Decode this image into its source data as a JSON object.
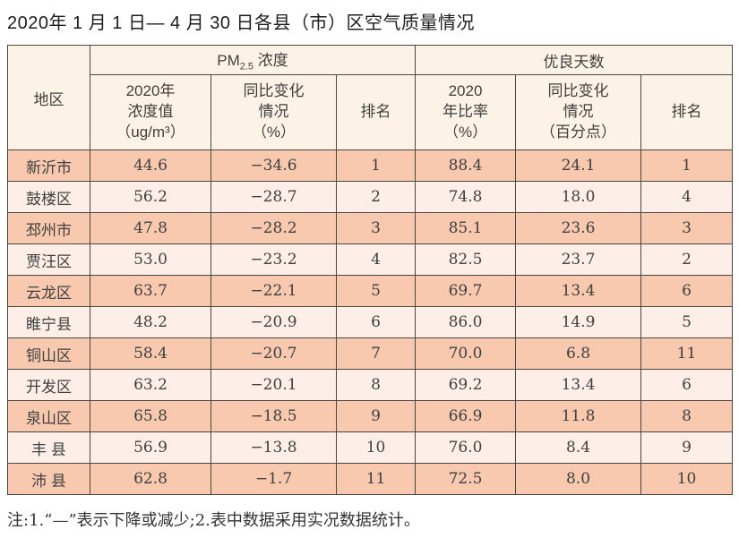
{
  "title": "2020年 1 月 1 日— 4 月 30 日各县（市）区空气质量情况",
  "note": "注:1.“—”表示下降或减少;2.表中数据采用实况数据统计。",
  "colors": {
    "border": "#4a4742",
    "row_peach": "#f8c9ae",
    "row_light": "#fdefe8",
    "header_cream": "#fcf3e6",
    "text": "#3f3f3f",
    "title_text": "#1c1c1c"
  },
  "table": {
    "region_header": "地区",
    "group_pm25": {
      "prefix": "PM",
      "sub": "2.5",
      "suffix": " 浓度"
    },
    "group_good_days": "优良天数",
    "columns": [
      "2020年\n浓度值\n（ug/m³）",
      "同比变化\n情况\n（%）",
      "排名",
      "2020\n年比率\n（%）",
      "同比变化\n情况\n（百分点）",
      "排名"
    ],
    "rows": [
      {
        "region": "新沂市",
        "pm25_value": "44.6",
        "pm25_change": "−34.6",
        "pm25_rank": "1",
        "good_rate": "88.4",
        "good_change": "24.1",
        "good_rank": "1"
      },
      {
        "region": "鼓楼区",
        "pm25_value": "56.2",
        "pm25_change": "−28.7",
        "pm25_rank": "2",
        "good_rate": "74.8",
        "good_change": "18.0",
        "good_rank": "4"
      },
      {
        "region": "邳州市",
        "pm25_value": "47.8",
        "pm25_change": "−28.2",
        "pm25_rank": "3",
        "good_rate": "85.1",
        "good_change": "23.6",
        "good_rank": "3"
      },
      {
        "region": "贾汪区",
        "pm25_value": "53.0",
        "pm25_change": "−23.2",
        "pm25_rank": "4",
        "good_rate": "82.5",
        "good_change": "23.7",
        "good_rank": "2"
      },
      {
        "region": "云龙区",
        "pm25_value": "63.7",
        "pm25_change": "−22.1",
        "pm25_rank": "5",
        "good_rate": "69.7",
        "good_change": "13.4",
        "good_rank": "6"
      },
      {
        "region": "睢宁县",
        "pm25_value": "48.2",
        "pm25_change": "−20.9",
        "pm25_rank": "6",
        "good_rate": "86.0",
        "good_change": "14.9",
        "good_rank": "5"
      },
      {
        "region": "铜山区",
        "pm25_value": "58.4",
        "pm25_change": "−20.7",
        "pm25_rank": "7",
        "good_rate": "70.0",
        "good_change": "6.8",
        "good_rank": "11"
      },
      {
        "region": "开发区",
        "pm25_value": "63.2",
        "pm25_change": "−20.1",
        "pm25_rank": "8",
        "good_rate": "69.2",
        "good_change": "13.4",
        "good_rank": "6"
      },
      {
        "region": "泉山区",
        "pm25_value": "65.8",
        "pm25_change": "−18.5",
        "pm25_rank": "9",
        "good_rate": "66.9",
        "good_change": "11.8",
        "good_rank": "8"
      },
      {
        "region": "丰 县",
        "pm25_value": "56.9",
        "pm25_change": "−13.8",
        "pm25_rank": "10",
        "good_rate": "76.0",
        "good_change": "8.4",
        "good_rank": "9"
      },
      {
        "region": "沛 县",
        "pm25_value": "62.8",
        "pm25_change": "−1.7",
        "pm25_rank": "11",
        "good_rate": "72.5",
        "good_change": "8.0",
        "good_rank": "10"
      }
    ]
  }
}
